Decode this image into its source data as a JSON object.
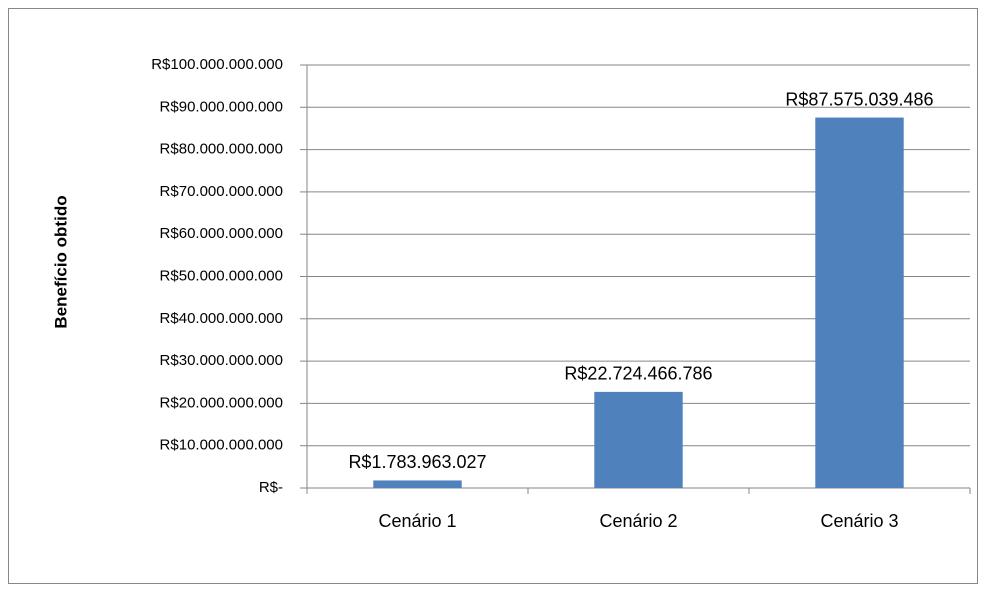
{
  "chart_data": {
    "type": "bar",
    "y_axis_label": "Benefício obtido",
    "categories": [
      "Cenário 1",
      "Cenário 2",
      "Cenário 3"
    ],
    "values": [
      1783963027,
      22724466786,
      87575039486
    ],
    "value_labels": [
      "R$1.783.963.027",
      "R$22.724.466.786",
      "R$87.575.039.486"
    ],
    "color": "#4f81bd",
    "ylim": [
      0,
      100000000000
    ],
    "yticks": [
      {
        "value": 0,
        "label": "R$-"
      },
      {
        "value": 10000000000,
        "label": "R$10.000.000.000"
      },
      {
        "value": 20000000000,
        "label": "R$20.000.000.000"
      },
      {
        "value": 30000000000,
        "label": "R$30.000.000.000"
      },
      {
        "value": 40000000000,
        "label": "R$40.000.000.000"
      },
      {
        "value": 50000000000,
        "label": "R$50.000.000.000"
      },
      {
        "value": 60000000000,
        "label": "R$60.000.000.000"
      },
      {
        "value": 70000000000,
        "label": "R$70.000.000.000"
      },
      {
        "value": 80000000000,
        "label": "R$80.000.000.000"
      },
      {
        "value": 90000000000,
        "label": "R$90.000.000.000"
      },
      {
        "value": 100000000000,
        "label": "R$100.000.000.000"
      }
    ],
    "grid": true
  }
}
